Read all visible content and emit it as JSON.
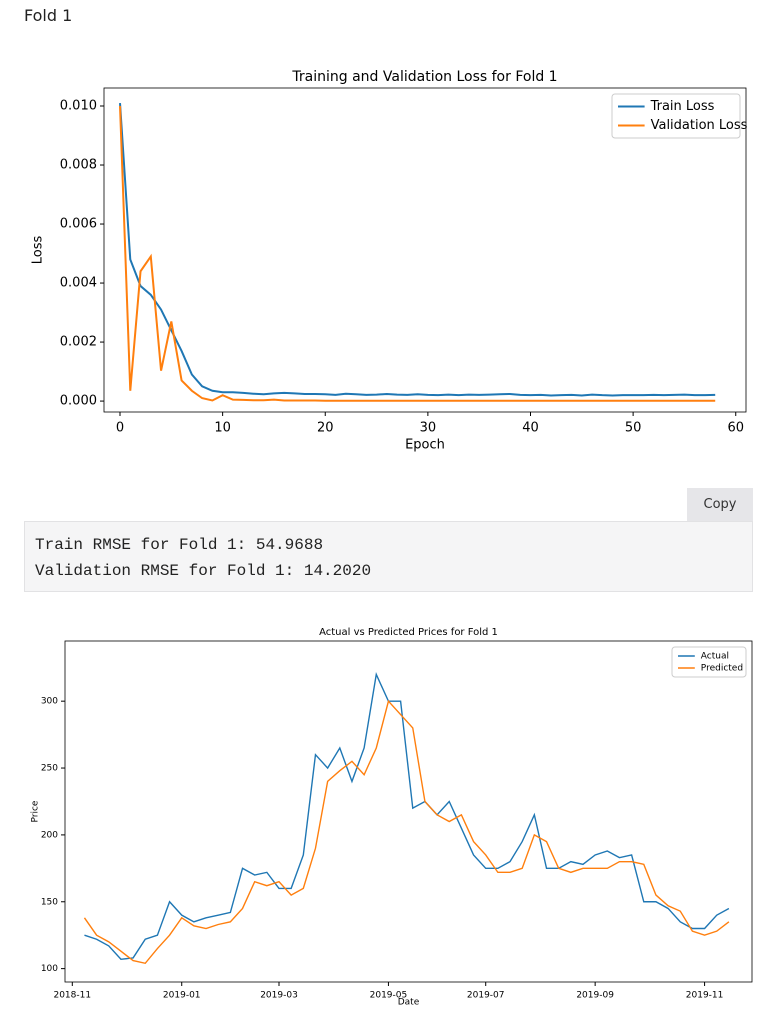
{
  "heading": "Fold 1",
  "copy_button": "Copy",
  "output": [
    "Train RMSE for Fold 1: 54.9688",
    "Validation RMSE for Fold 1: 14.2020"
  ],
  "chart_data": [
    {
      "type": "line",
      "title": "Training and Validation Loss for Fold 1",
      "xlabel": "Epoch",
      "ylabel": "Loss",
      "x": [
        0,
        1,
        2,
        3,
        4,
        5,
        6,
        7,
        8,
        9,
        10,
        11,
        12,
        13,
        14,
        15,
        16,
        17,
        18,
        19,
        20,
        21,
        22,
        23,
        24,
        25,
        26,
        27,
        28,
        29,
        30,
        31,
        32,
        33,
        34,
        35,
        36,
        37,
        38,
        39,
        40,
        41,
        42,
        43,
        44,
        45,
        46,
        47,
        48,
        49,
        50,
        51,
        52,
        53,
        54,
        55,
        56,
        57,
        58
      ],
      "series": [
        {
          "name": "Train Loss",
          "color": "#1f77b4",
          "values": [
            0.0101,
            0.0048,
            0.0039,
            0.0036,
            0.0031,
            0.0024,
            0.0017,
            0.0009,
            0.0005,
            0.00035,
            0.0003,
            0.0003,
            0.00028,
            0.00025,
            0.00023,
            0.00026,
            0.00028,
            0.00026,
            0.00024,
            0.00024,
            0.00023,
            0.00021,
            0.00025,
            0.00023,
            0.00021,
            0.00022,
            0.00024,
            0.00022,
            0.00021,
            0.00023,
            0.00021,
            0.0002,
            0.00022,
            0.0002,
            0.00022,
            0.00021,
            0.00022,
            0.00023,
            0.00024,
            0.00021,
            0.0002,
            0.00021,
            0.00019,
            0.0002,
            0.00021,
            0.00019,
            0.00022,
            0.0002,
            0.00019,
            0.0002,
            0.0002,
            0.0002,
            0.00021,
            0.0002,
            0.00021,
            0.00022,
            0.0002,
            0.0002,
            0.00021
          ]
        },
        {
          "name": "Validation Loss",
          "color": "#ff7f0e",
          "values": [
            0.01,
            0.00035,
            0.0044,
            0.0049,
            0.00103,
            0.0027,
            0.0007,
            0.00035,
            0.0001,
            2e-05,
            0.0002,
            5e-05,
            4e-05,
            3e-05,
            3e-05,
            5e-05,
            2e-05,
            2e-05,
            2e-05,
            2e-05,
            1e-05,
            1e-05,
            1e-05,
            1e-05,
            1e-05,
            1e-05,
            1e-05,
            1e-05,
            1e-05,
            1e-05,
            1e-05,
            1e-05,
            1e-05,
            1e-05,
            1e-05,
            1e-05,
            1e-05,
            1e-05,
            1e-05,
            1e-05,
            1e-05,
            1e-05,
            1e-05,
            1e-05,
            1e-05,
            1e-05,
            1e-05,
            1e-05,
            1e-05,
            1e-05,
            1e-05,
            1e-05,
            1e-05,
            1e-05,
            1e-05,
            1e-05,
            1e-05,
            1e-05,
            1e-05
          ]
        }
      ],
      "xlim": [
        -1.56,
        61
      ],
      "xticks": [
        0,
        10,
        20,
        30,
        40,
        50,
        60
      ],
      "ylim": [
        -0.00037,
        0.01061
      ],
      "yticks": [
        {
          "value": 0,
          "label": "0.000"
        },
        {
          "value": 0.002,
          "label": "0.002"
        },
        {
          "value": 0.004,
          "label": "0.004"
        },
        {
          "value": 0.006,
          "label": "0.006"
        },
        {
          "value": 0.008,
          "label": "0.008"
        },
        {
          "value": 0.01,
          "label": "0.010"
        }
      ],
      "legend": "upper right"
    },
    {
      "type": "line",
      "title": "Actual vs Predicted Prices for Fold 1",
      "xlabel": "Date",
      "ylabel": "Price",
      "categories": [
        "2018-11",
        null,
        null,
        null,
        null,
        null,
        null,
        null,
        null,
        "2019-01",
        null,
        null,
        null,
        null,
        null,
        null,
        null,
        "2019-03",
        null,
        null,
        null,
        null,
        null,
        null,
        null,
        null,
        "2019-05",
        null,
        null,
        null,
        null,
        null,
        null,
        null,
        "2019-07",
        null,
        null,
        null,
        null,
        null,
        null,
        null,
        null,
        "2019-09",
        null,
        null,
        null,
        null,
        null,
        null,
        null,
        null,
        "2019-11",
        null,
        null
      ],
      "series": [
        {
          "name": "Actual",
          "color": "#1f77b4",
          "values": [
            null,
            125,
            122,
            117,
            107,
            108,
            122,
            125,
            150,
            140,
            135,
            138,
            140,
            142,
            175,
            170,
            172,
            160,
            160,
            185,
            260,
            250,
            265,
            240,
            265,
            320,
            300,
            300,
            220,
            225,
            215,
            225,
            205,
            185,
            175,
            175,
            180,
            195,
            215,
            175,
            175,
            180,
            178,
            185,
            188,
            183,
            185,
            150,
            150,
            145,
            135,
            130,
            130,
            140,
            145
          ]
        },
        {
          "name": "Predicted",
          "color": "#ff7f0e",
          "values": [
            null,
            138,
            125,
            120,
            113,
            106,
            104,
            115,
            125,
            138,
            132,
            130,
            133,
            135,
            145,
            165,
            162,
            165,
            155,
            160,
            190,
            240,
            248,
            255,
            245,
            265,
            300,
            290,
            280,
            225,
            215,
            210,
            215,
            195,
            185,
            172,
            172,
            175,
            200,
            195,
            175,
            172,
            175,
            175,
            175,
            180,
            180,
            178,
            155,
            147,
            143,
            128,
            125,
            128,
            135
          ]
        }
      ],
      "ylim": [
        90,
        345
      ],
      "yticks": [
        100,
        150,
        200,
        250,
        300
      ],
      "legend": "upper right"
    }
  ]
}
